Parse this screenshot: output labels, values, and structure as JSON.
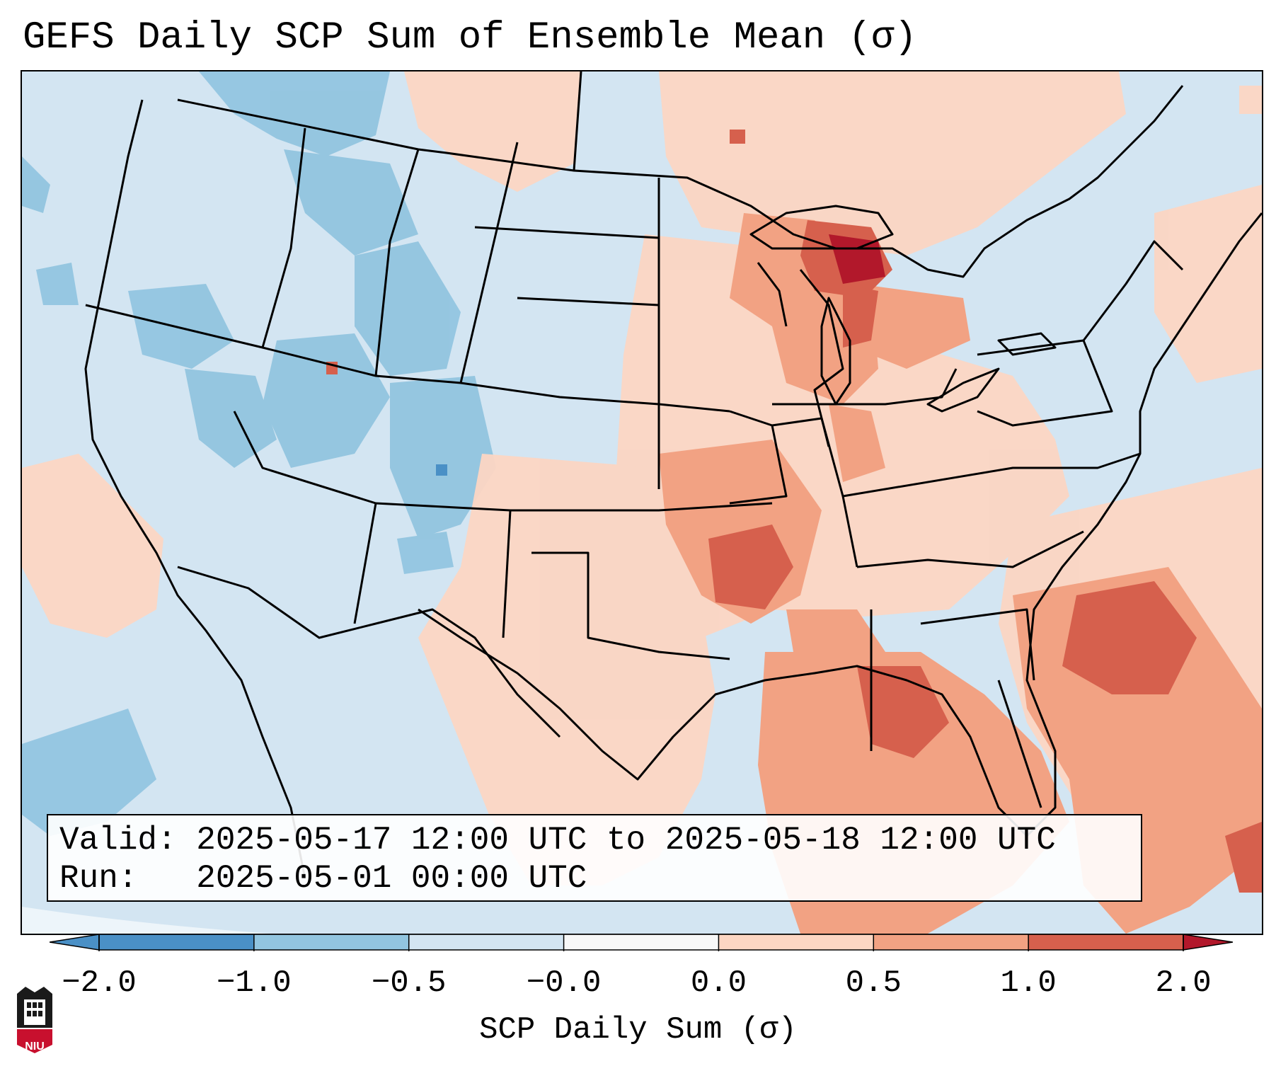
{
  "title": "GEFS Daily SCP Sum of Ensemble Mean (σ)",
  "info": {
    "valid_label": "Valid:",
    "valid_value": "2025-05-17 12:00 UTC to 2025-05-18 12:00 UTC",
    "run_label": "Run:",
    "run_value": "2025-05-01 00:00 UTC"
  },
  "colorbar": {
    "label": "SCP Daily Sum (σ)",
    "ticks": [
      "−2.0",
      "−1.0",
      "−0.5",
      "−0.0",
      "0.0",
      "0.5",
      "1.0",
      "2.0"
    ],
    "colors": [
      "#4a90c6",
      "#92c5e0",
      "#d3e5f2",
      "#f8f8f8",
      "#fcd6c3",
      "#f2a283",
      "#d6604d",
      "#b2182b"
    ],
    "extend": "both"
  },
  "map": {
    "ocean_color": "#d3e5f2",
    "background_value_color": "#d3e5f2",
    "outline_color": "#000000"
  },
  "logo": {
    "text": "NIU",
    "color": "#c8102e"
  }
}
